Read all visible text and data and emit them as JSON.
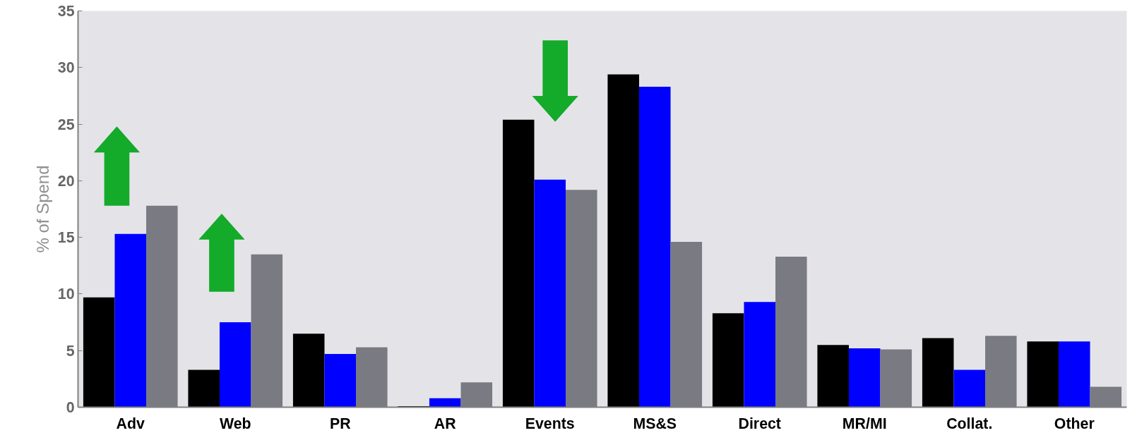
{
  "chart_data": {
    "type": "bar",
    "ylabel": "% of Spend",
    "categories": [
      "Adv",
      "Web",
      "PR",
      "AR",
      "Events",
      "MS&S",
      "Direct",
      "MR/MI",
      "Collat.",
      "Other"
    ],
    "series": [
      {
        "color": "#000000",
        "values": [
          9.7,
          3.3,
          6.5,
          0.1,
          25.4,
          29.4,
          8.3,
          5.5,
          6.1,
          5.8
        ]
      },
      {
        "color": "#0000ff",
        "values": [
          15.3,
          7.5,
          4.7,
          0.8,
          20.1,
          28.3,
          9.3,
          5.2,
          3.3,
          5.8
        ]
      },
      {
        "color": "#7a7a82",
        "values": [
          17.8,
          13.5,
          5.3,
          2.2,
          19.2,
          14.6,
          13.3,
          5.1,
          6.3,
          1.8
        ]
      }
    ],
    "ylim": [
      0,
      35
    ],
    "yticks": [
      0,
      5,
      10,
      15,
      20,
      25,
      30,
      35
    ]
  }
}
